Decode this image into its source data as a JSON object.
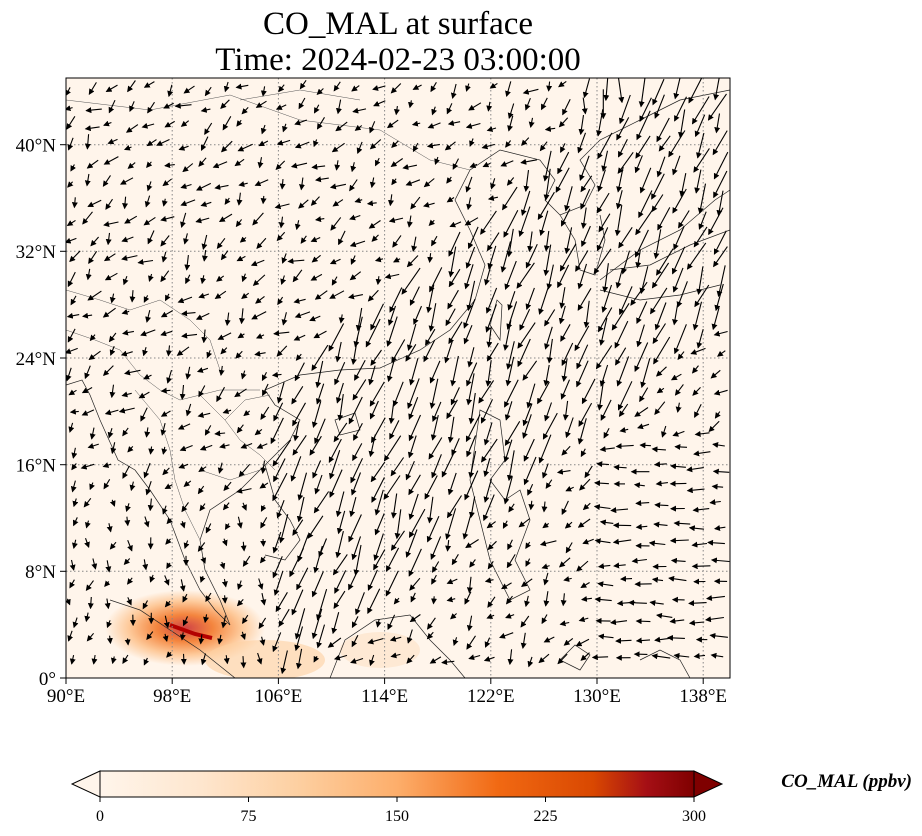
{
  "title_line1": "CO_MAL at surface",
  "title_line2": "Time: 2024-02-23 03:00:00",
  "map": {
    "lon_range": [
      90,
      140
    ],
    "lat_range": [
      0,
      45
    ],
    "x_ticks": [
      "90°E",
      "98°E",
      "106°E",
      "114°E",
      "122°E",
      "130°E",
      "138°E"
    ],
    "y_ticks": [
      "0°",
      "8°N",
      "16°N",
      "24°N",
      "32°N",
      "40°N"
    ],
    "background_color": "#fff5eb",
    "gridlines": "dotted",
    "vectors": "wind arrows"
  },
  "colorbar": {
    "label": "CO_MAL (ppbv)",
    "ticks": [
      "0",
      "75",
      "150",
      "225",
      "300"
    ],
    "range": [
      0,
      300
    ],
    "colormap": [
      "#fff5eb",
      "#fdd49e",
      "#fdae6b",
      "#fd8d3c",
      "#e6550d",
      "#a63603",
      "#7f0000"
    ],
    "extend": "both"
  }
}
